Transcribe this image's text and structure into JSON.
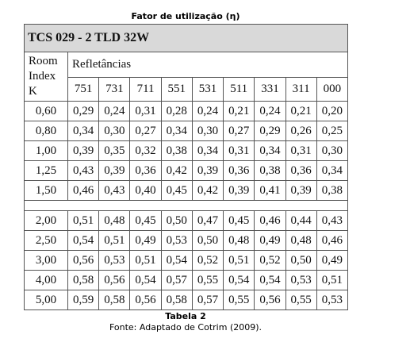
{
  "title": "Fator de utilização (η)",
  "table": {
    "header": "TCS 029 - 2 TLD 32W",
    "row_header": [
      "Room",
      "Index",
      "K"
    ],
    "group_header": "Refletâncias",
    "columns": [
      "751",
      "731",
      "711",
      "551",
      "531",
      "511",
      "331",
      "311",
      "000"
    ],
    "groups": [
      [
        {
          "index": "0,60",
          "values": [
            "0,29",
            "0,24",
            "0,31",
            "0,28",
            "0,24",
            "0,21",
            "0,24",
            "0,21",
            "0,20"
          ]
        },
        {
          "index": "0,80",
          "values": [
            "0,34",
            "0,30",
            "0,27",
            "0,34",
            "0,30",
            "0,27",
            "0,29",
            "0,26",
            "0,25"
          ]
        },
        {
          "index": "1,00",
          "values": [
            "0,39",
            "0,35",
            "0,32",
            "0,38",
            "0,34",
            "0,31",
            "0,34",
            "0,31",
            "0,30"
          ]
        },
        {
          "index": "1,25",
          "values": [
            "0,43",
            "0,39",
            "0,36",
            "0,42",
            "0,39",
            "0,36",
            "0,38",
            "0,36",
            "0,34"
          ]
        },
        {
          "index": "1,50",
          "values": [
            "0,46",
            "0,43",
            "0,40",
            "0,45",
            "0,42",
            "0,39",
            "0,41",
            "0,39",
            "0,38"
          ]
        }
      ],
      [
        {
          "index": "2,00",
          "values": [
            "0,51",
            "0,48",
            "0,45",
            "0,50",
            "0,47",
            "0,45",
            "0,46",
            "0,44",
            "0,43"
          ]
        },
        {
          "index": "2,50",
          "values": [
            "0,54",
            "0,51",
            "0,49",
            "0,53",
            "0,50",
            "0,48",
            "0,49",
            "0,48",
            "0,46"
          ]
        },
        {
          "index": "3,00",
          "values": [
            "0,56",
            "0,53",
            "0,51",
            "0,54",
            "0,52",
            "0,51",
            "0,52",
            "0,50",
            "0,49"
          ]
        },
        {
          "index": "4,00",
          "values": [
            "0,58",
            "0,56",
            "0,54",
            "0,57",
            "0,55",
            "0,54",
            "0,54",
            "0,53",
            "0,51"
          ]
        },
        {
          "index": "5,00",
          "values": [
            "0,59",
            "0,58",
            "0,56",
            "0,58",
            "0,57",
            "0,55",
            "0,56",
            "0,55",
            "0,53"
          ]
        }
      ]
    ]
  },
  "caption": "Tabela 2",
  "source": "Fonte: Adaptado de Cotrim (2009)."
}
